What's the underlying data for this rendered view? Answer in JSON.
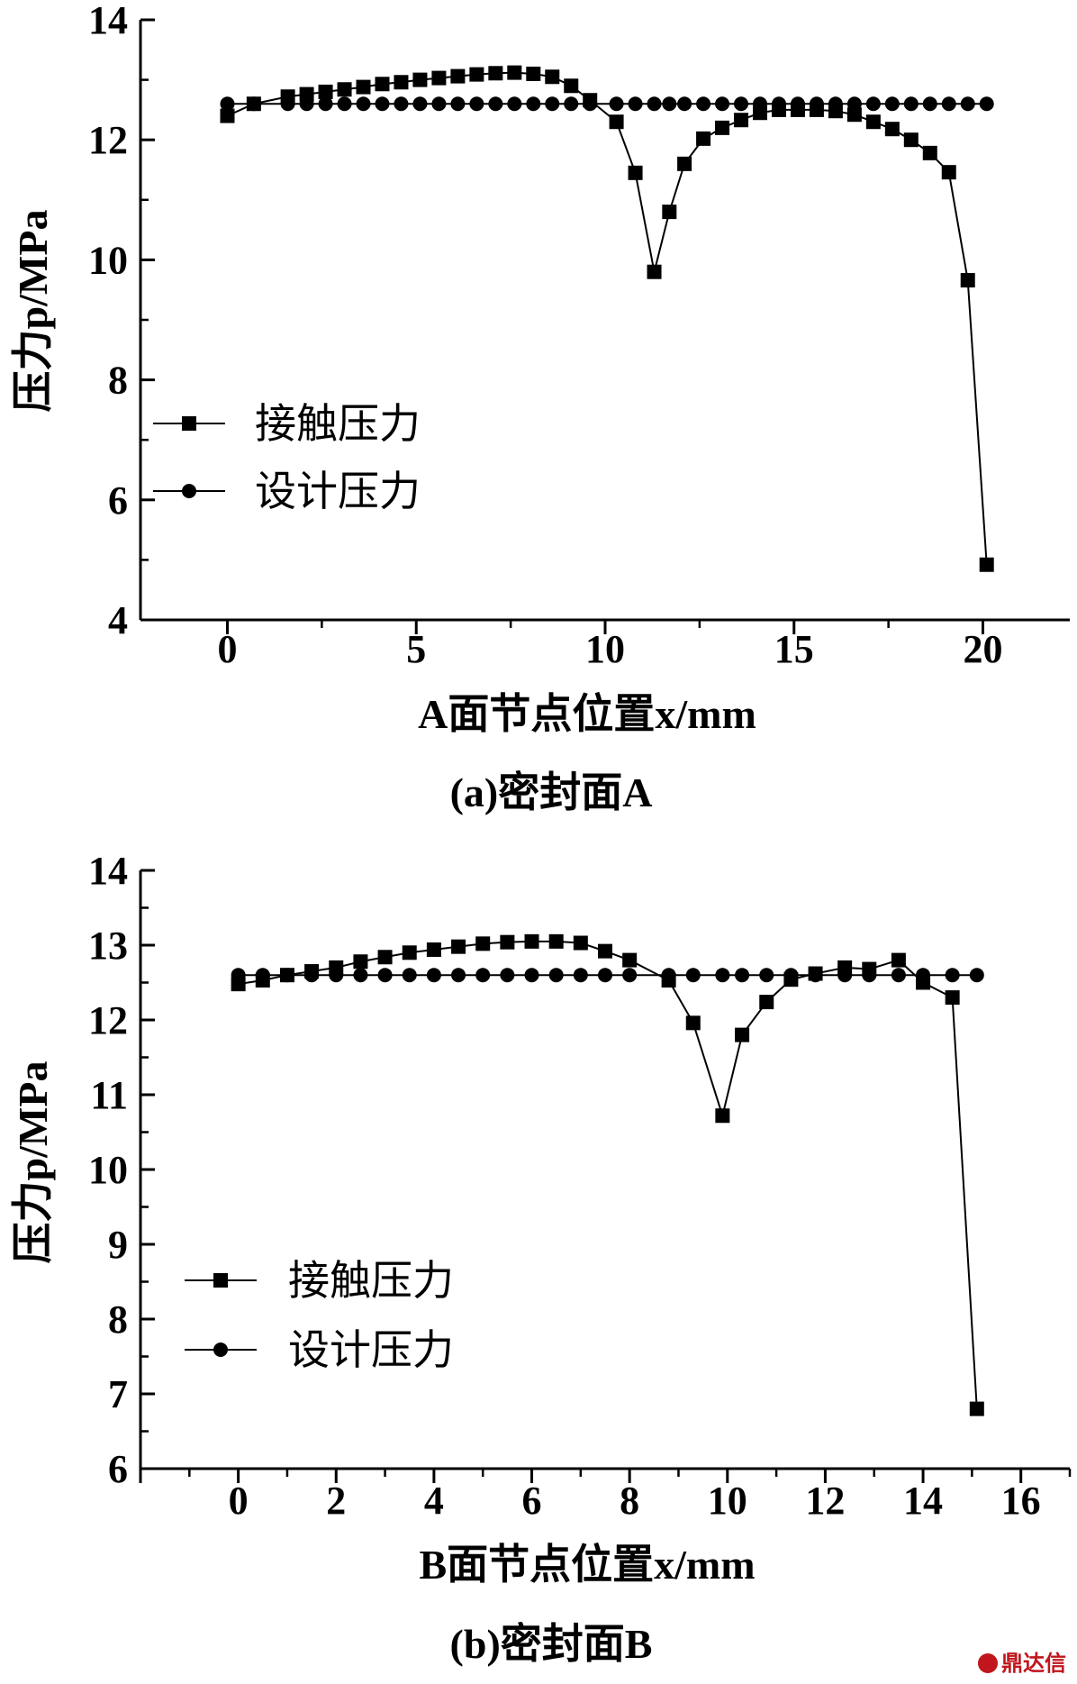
{
  "watermark": "鼎达信",
  "chart_data": [
    {
      "type": "line",
      "caption": "(a)密封面A",
      "xlabel": "A面节点位置x/mm",
      "ylabel": "压力p/MPa",
      "xlim": [
        -2.3,
        22.3
      ],
      "ylim": [
        4,
        14
      ],
      "xticks": [
        0,
        5,
        10,
        15,
        20
      ],
      "yticks": [
        4,
        6,
        8,
        10,
        12,
        14
      ],
      "legend_position": "center-left",
      "series": [
        {
          "name": "接触压力",
          "marker": "square",
          "x": [
            0,
            0.7,
            1.6,
            2.1,
            2.6,
            3.1,
            3.6,
            4.1,
            4.6,
            5.1,
            5.6,
            6.1,
            6.6,
            7.1,
            7.6,
            8.1,
            8.6,
            9.1,
            9.6,
            10.3,
            10.8,
            11.3,
            11.7,
            12.1,
            12.6,
            13.1,
            13.6,
            14.1,
            14.6,
            15.1,
            15.6,
            16.1,
            16.6,
            17.1,
            17.6,
            18.1,
            18.6,
            19.1,
            19.6,
            20.1
          ],
          "y": [
            12.4,
            12.6,
            12.72,
            12.76,
            12.8,
            12.84,
            12.88,
            12.93,
            12.96,
            13.0,
            13.03,
            13.06,
            13.09,
            13.11,
            13.12,
            13.1,
            13.05,
            12.9,
            12.66,
            12.3,
            11.45,
            9.8,
            10.8,
            11.6,
            12.02,
            12.2,
            12.33,
            12.45,
            12.5,
            12.5,
            12.5,
            12.48,
            12.42,
            12.3,
            12.18,
            12.0,
            11.78,
            11.46,
            9.66,
            4.92
          ]
        },
        {
          "name": "设计压力",
          "marker": "circle",
          "x": [
            0,
            0.7,
            1.6,
            2.1,
            2.6,
            3.1,
            3.6,
            4.1,
            4.6,
            5.1,
            5.6,
            6.1,
            6.6,
            7.1,
            7.6,
            8.1,
            8.6,
            9.1,
            9.6,
            10.3,
            10.8,
            11.3,
            11.7,
            12.1,
            12.6,
            13.1,
            13.6,
            14.1,
            14.6,
            15.1,
            15.6,
            16.1,
            16.6,
            17.1,
            17.6,
            18.1,
            18.6,
            19.1,
            19.6,
            20.1
          ],
          "y": [
            12.6,
            12.6,
            12.6,
            12.6,
            12.6,
            12.6,
            12.6,
            12.6,
            12.6,
            12.6,
            12.6,
            12.6,
            12.6,
            12.6,
            12.6,
            12.6,
            12.6,
            12.6,
            12.6,
            12.6,
            12.6,
            12.6,
            12.6,
            12.6,
            12.6,
            12.6,
            12.6,
            12.6,
            12.6,
            12.6,
            12.6,
            12.6,
            12.6,
            12.6,
            12.6,
            12.6,
            12.6,
            12.6,
            12.6,
            12.6
          ]
        }
      ]
    },
    {
      "type": "line",
      "caption": "(b)密封面B",
      "xlabel": "B面节点位置x/mm",
      "ylabel": "压力p/MPa",
      "xlim": [
        -2,
        17
      ],
      "ylim": [
        6,
        14
      ],
      "xticks": [
        0,
        2,
        4,
        6,
        8,
        10,
        12,
        14,
        16
      ],
      "yticks": [
        6,
        7,
        8,
        9,
        10,
        11,
        12,
        13,
        14
      ],
      "legend_position": "center-left",
      "series": [
        {
          "name": "接触压力",
          "marker": "square",
          "x": [
            0,
            0.5,
            1,
            1.5,
            2,
            2.5,
            3,
            3.5,
            4,
            4.5,
            5,
            5.5,
            6,
            6.5,
            7,
            7.5,
            8,
            8.8,
            9.3,
            9.9,
            10.3,
            10.8,
            11.3,
            11.8,
            12.4,
            12.9,
            13.5,
            14,
            14.6,
            15.1
          ],
          "y": [
            12.48,
            12.53,
            12.6,
            12.65,
            12.7,
            12.78,
            12.84,
            12.9,
            12.94,
            12.98,
            13.02,
            13.04,
            13.05,
            13.05,
            13.03,
            12.92,
            12.8,
            12.53,
            11.96,
            10.72,
            11.8,
            12.24,
            12.54,
            12.62,
            12.7,
            12.68,
            12.8,
            12.5,
            12.3,
            6.8
          ]
        },
        {
          "name": "设计压力",
          "marker": "circle",
          "x": [
            0,
            0.5,
            1,
            1.5,
            2,
            2.5,
            3,
            3.5,
            4,
            4.5,
            5,
            5.5,
            6,
            6.5,
            7,
            7.5,
            8,
            8.8,
            9.3,
            9.9,
            10.3,
            10.8,
            11.3,
            11.8,
            12.4,
            12.9,
            13.5,
            14,
            14.6,
            15.1
          ],
          "y": [
            12.6,
            12.6,
            12.6,
            12.6,
            12.6,
            12.6,
            12.6,
            12.6,
            12.6,
            12.6,
            12.6,
            12.6,
            12.6,
            12.6,
            12.6,
            12.6,
            12.6,
            12.6,
            12.6,
            12.6,
            12.6,
            12.6,
            12.6,
            12.6,
            12.6,
            12.6,
            12.6,
            12.6,
            12.6,
            12.6
          ]
        }
      ]
    }
  ]
}
